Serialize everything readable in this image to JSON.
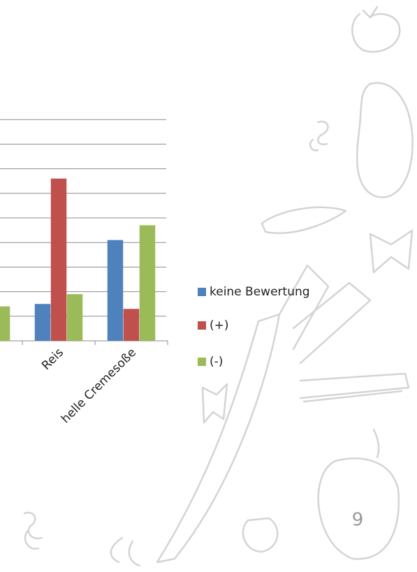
{
  "page_number": "9",
  "chart_data": {
    "type": "bar",
    "categories": [
      null,
      "Reis",
      "helle Cremesoße"
    ],
    "series": [
      {
        "name": "keine Bewertung",
        "color": "#4f81bd",
        "values": [
          null,
          1.5,
          4.1
        ]
      },
      {
        "name": "(+)",
        "color": "#c0504d",
        "values": [
          null,
          6.6,
          1.3
        ]
      },
      {
        "name": "(-)",
        "color": "#9bbb59",
        "values": [
          1.4,
          1.9,
          4.7
        ]
      }
    ],
    "ylim": [
      0,
      9
    ],
    "yticks": [
      0,
      1,
      2,
      3,
      4,
      5,
      6,
      7,
      8,
      9
    ],
    "grid": true
  }
}
